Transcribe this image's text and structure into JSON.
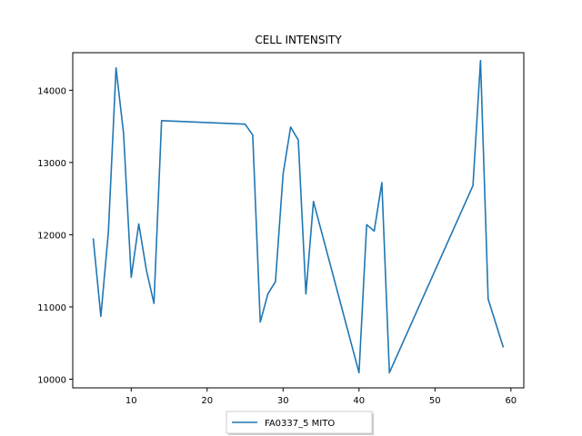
{
  "chart_data": {
    "type": "line",
    "title": "CELL INTENSITY",
    "xlabel": "",
    "ylabel": "",
    "xlim": [
      2.3,
      61.7
    ],
    "ylim": [
      9880,
      14520
    ],
    "xticks": [
      10,
      20,
      30,
      40,
      50,
      60
    ],
    "yticks": [
      10000,
      11000,
      12000,
      13000,
      14000
    ],
    "grid": false,
    "legend_position": "bottom-center",
    "series": [
      {
        "name": "FA0337_5 MITO",
        "color": "#1f77b4",
        "x": [
          5,
          6,
          7,
          8,
          9,
          10,
          11,
          12,
          13,
          14,
          25,
          26,
          27,
          28,
          29,
          30,
          31,
          32,
          33,
          34,
          40,
          41,
          42,
          43,
          44,
          55,
          56,
          57,
          59
        ],
        "y": [
          11950,
          10870,
          12040,
          14310,
          13400,
          11410,
          12150,
          11510,
          11050,
          13580,
          13530,
          13380,
          10790,
          11180,
          11350,
          12840,
          13490,
          13310,
          11180,
          12460,
          10090,
          12140,
          12050,
          12720,
          10090,
          12680,
          14410,
          11110,
          10440
        ]
      }
    ]
  }
}
